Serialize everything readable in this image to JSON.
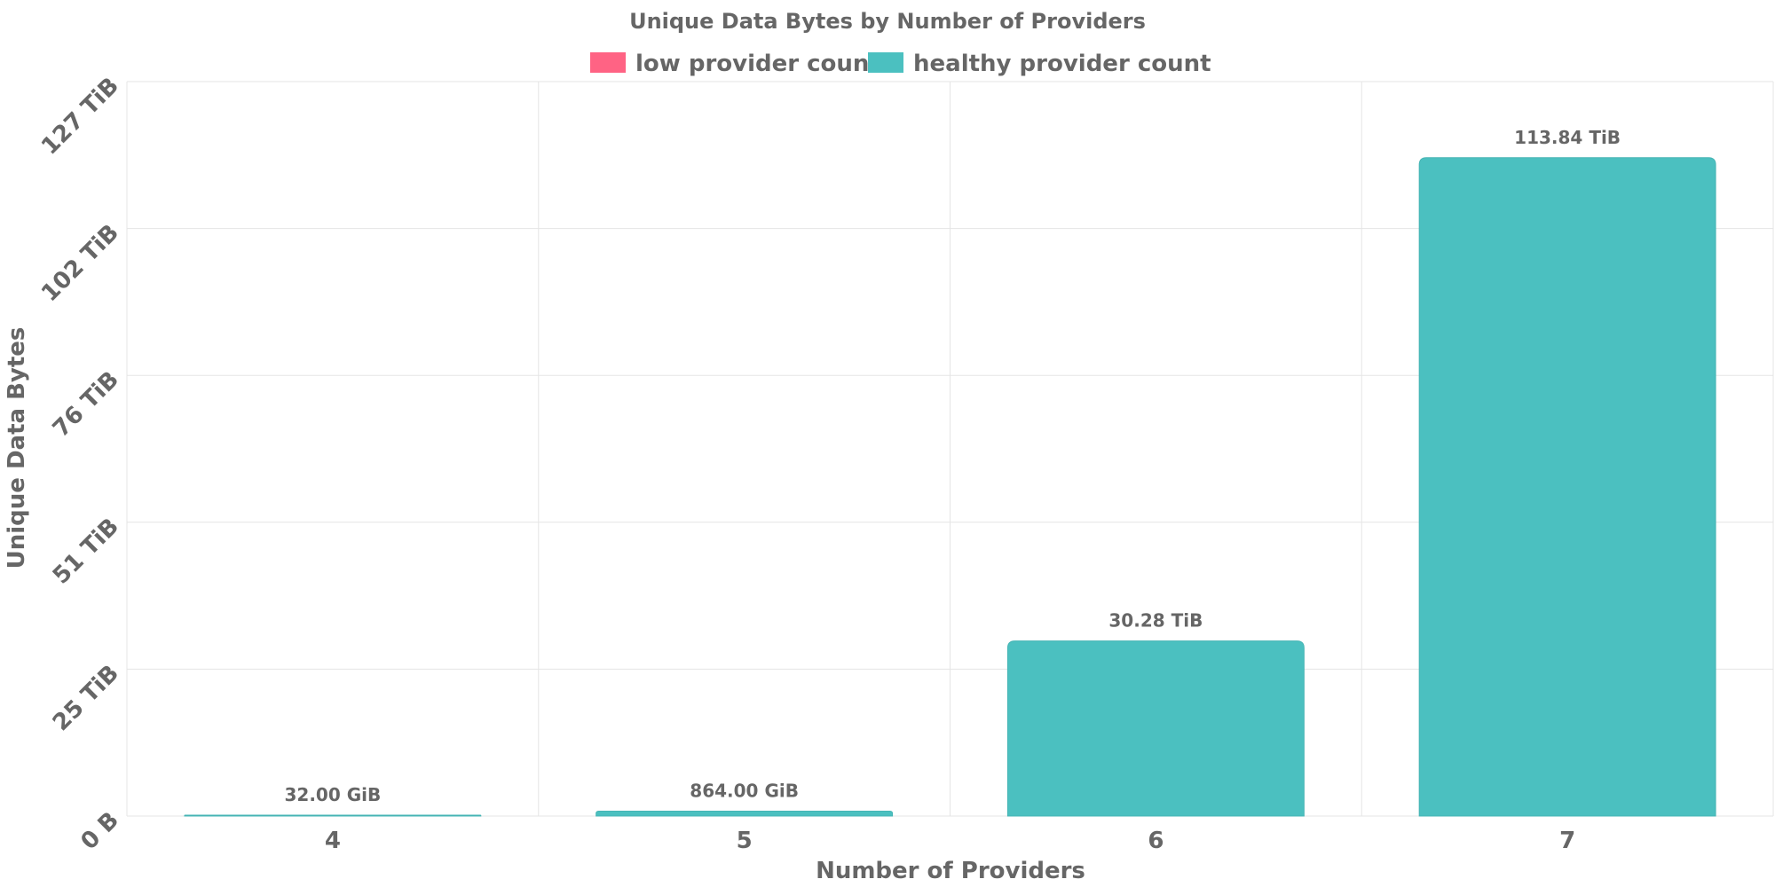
{
  "chart_data": {
    "type": "bar",
    "title": "Unique Data Bytes by Number of Providers",
    "xlabel": "Number of Providers",
    "ylabel": "Unique Data Bytes",
    "categories": [
      "4",
      "5",
      "6",
      "7"
    ],
    "series": [
      {
        "name": "low provider count",
        "color": "#ff6384",
        "values": [
          0,
          0,
          0,
          0
        ]
      },
      {
        "name": "healthy provider count",
        "color": "#4bc0c0",
        "values": [
          0.03125,
          0.84375,
          30.28,
          113.84
        ]
      }
    ],
    "value_unit": "TiB",
    "data_labels": [
      "32.00 GiB",
      "864.00 GiB",
      "30.28 TiB",
      "113.84 TiB"
    ],
    "ylim": [
      0,
      127
    ],
    "yticks": [
      {
        "value": 0,
        "label": "0 B"
      },
      {
        "value": 25.4,
        "label": "25 TiB"
      },
      {
        "value": 50.8,
        "label": "51 TiB"
      },
      {
        "value": 76.2,
        "label": "76 TiB"
      },
      {
        "value": 101.6,
        "label": "102 TiB"
      },
      {
        "value": 127,
        "label": "127 TiB"
      }
    ],
    "legend_position": "top",
    "grid": true
  }
}
